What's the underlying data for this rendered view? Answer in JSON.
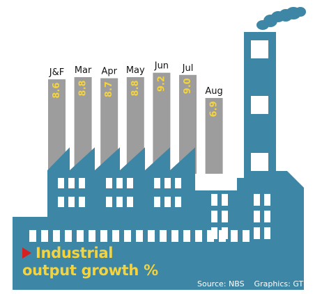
{
  "chart_data": {
    "type": "bar",
    "title_lines": [
      "Industrial",
      "output growth %"
    ],
    "categories": [
      "J&F",
      "Mar",
      "Apr",
      "May",
      "Jun",
      "Jul",
      "Aug"
    ],
    "values": [
      8.6,
      8.8,
      8.7,
      8.8,
      9.2,
      9.0,
      6.9
    ],
    "value_labels": [
      "8.6",
      "8.8",
      "8.7",
      "8.8",
      "9.2",
      "9.0",
      "6.9"
    ],
    "source": "Source: NBS",
    "credit": "Graphics: GT"
  },
  "colors": {
    "chimney": "#9d9d9d",
    "building": "#3d86a6",
    "window": "#ffffff",
    "value_label": "#f5d33c",
    "title": "#f5d33c",
    "arrow": "#d42020",
    "smoke": "#3d86a6"
  }
}
